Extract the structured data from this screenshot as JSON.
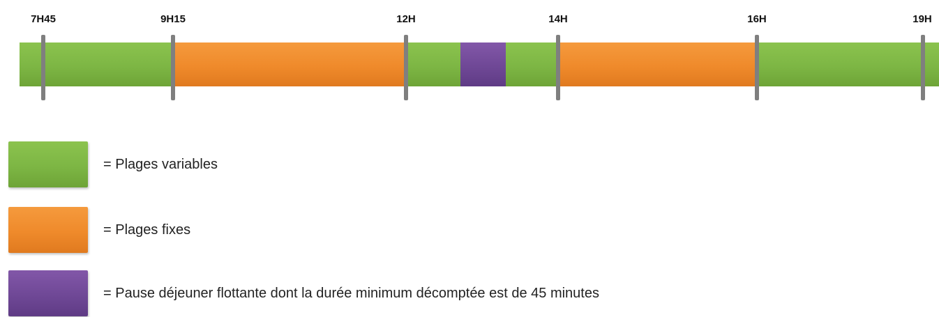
{
  "timeline": {
    "ticks": [
      "7H45",
      "9H15",
      "12H",
      "14H",
      "16H",
      "19H"
    ],
    "segments": [
      {
        "from": "7H45",
        "to": "9H15",
        "type": "variable"
      },
      {
        "from": "9H15",
        "to": "12H",
        "type": "fixed"
      },
      {
        "from": "12H",
        "to": "14H",
        "type": "variable",
        "lunch_pause_inside": true
      },
      {
        "from": "14H",
        "to": "16H",
        "type": "fixed"
      },
      {
        "from": "16H",
        "to": "19H",
        "type": "variable"
      }
    ]
  },
  "colors": {
    "variable": "#7db644",
    "fixed": "#ef8a2b",
    "pause": "#6f4896",
    "tick": "#7f7f7f"
  },
  "legend": {
    "variable_label": "= Plages variables",
    "fixed_label": "= Plages fixes",
    "pause_label": "= Pause déjeuner flottante dont la durée minimum décomptée est de 45 minutes"
  }
}
